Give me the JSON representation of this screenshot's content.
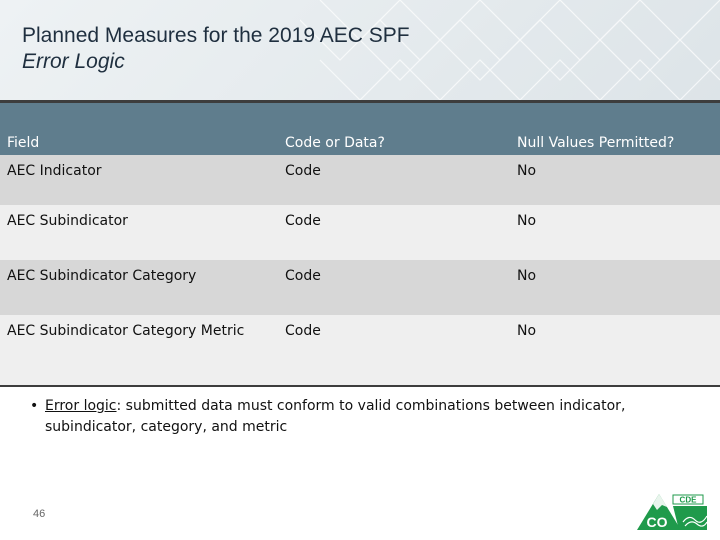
{
  "slide": {
    "title": "Planned Measures for the 2019 AEC SPF",
    "subtitle": "Error Logic",
    "page_number": "46"
  },
  "table": {
    "headers": [
      "Field",
      "Code or Data?",
      "Null Values Permitted?"
    ],
    "rows": [
      [
        "AEC Indicator",
        "Code",
        "No"
      ],
      [
        "AEC Subindicator",
        "Code",
        "No"
      ],
      [
        "AEC Subindicator Category",
        "Code",
        "No"
      ],
      [
        "AEC Subindicator Category Metric",
        "Code",
        "No"
      ]
    ]
  },
  "bullet": {
    "marker": "•",
    "term": "Error logic",
    "text": ": submitted data must conform to valid combinations between indicator, subindicator, category, and metric"
  },
  "logo": {
    "top_text": "CDE",
    "main_text": "CO"
  },
  "colors": {
    "header_row": "#5f7d8d",
    "row_dark": "#d7d7d7",
    "row_light": "#efefef",
    "logo_green": "#1f9a4b"
  }
}
